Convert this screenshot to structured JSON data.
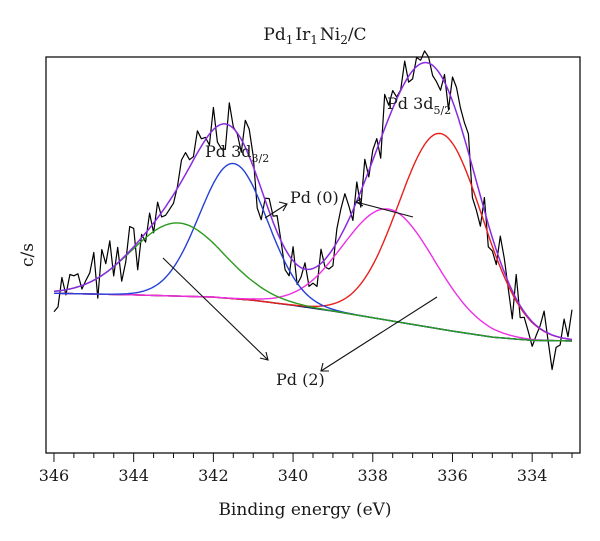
{
  "chart_data": {
    "type": "line",
    "title": "Pd1Ir1Ni2/C",
    "title_parts": {
      "el1": "Pd",
      "n1": "1",
      "el2": "Ir",
      "n2": "1",
      "el3": "Ni",
      "n3": "2",
      "suffix": "/C"
    },
    "xlabel": "Binding energy (eV)",
    "ylabel": "c/s",
    "xlim": [
      346.2,
      332.8
    ],
    "x_reversed": true,
    "x_ticks": [
      "346",
      "344",
      "342",
      "340",
      "338",
      "336",
      "334"
    ],
    "x_tick_values": [
      346,
      344,
      342,
      340,
      338,
      336,
      334
    ],
    "y_ticks_labeled": false,
    "ylim": [
      0,
      100
    ],
    "grid": false,
    "legend": "none",
    "annotations": [
      {
        "id": "pd3d32",
        "prefix": "Pd 3d",
        "sub": "3/2",
        "near_x": 341.6
      },
      {
        "id": "pd3d52",
        "prefix": "Pd 3d",
        "sub": "5/2",
        "near_x": 336.3
      },
      {
        "id": "pd0",
        "text": "Pd (0)"
      },
      {
        "id": "pd2",
        "text": "Pd (2)"
      }
    ],
    "baseline": {
      "name": "background",
      "color": "#1f2a6b",
      "x": [
        346,
        344,
        342,
        341,
        340,
        339,
        338,
        337,
        336,
        335,
        334,
        333
      ],
      "values": [
        43.0,
        42.5,
        41.8,
        40.8,
        39.2,
        37.4,
        35.3,
        33.2,
        31.1,
        29.2,
        28.2,
        28.0
      ]
    },
    "series": [
      {
        "name": "raw",
        "color": "#000000",
        "x_start": 346,
        "x_end": 333,
        "points": 131,
        "peaks": [
          {
            "center": 336.3,
            "height": 61.5,
            "width": 1.05
          },
          {
            "center": 337.6,
            "height": 35.0,
            "width": 1.15
          },
          {
            "center": 341.5,
            "height": 42.5,
            "width": 0.85
          },
          {
            "center": 342.9,
            "height": 23.0,
            "width": 1.15
          }
        ]
      },
      {
        "name": "envelope",
        "color": "#8a2be2",
        "peaks": [
          0,
          1,
          2,
          3
        ]
      },
      {
        "name": "Pd(0) 3d5/2",
        "color": "#e8201c",
        "peaks": [
          0
        ]
      },
      {
        "name": "Pd(2) 3d5/2",
        "color": "#ee2fe3",
        "peaks": [
          1
        ]
      },
      {
        "name": "Pd(0) 3d3/2",
        "color": "#2440d8",
        "peaks": [
          2
        ]
      },
      {
        "name": "Pd(2) 3d3/2",
        "color": "#2a9a1e",
        "peaks": [
          3
        ]
      }
    ]
  }
}
